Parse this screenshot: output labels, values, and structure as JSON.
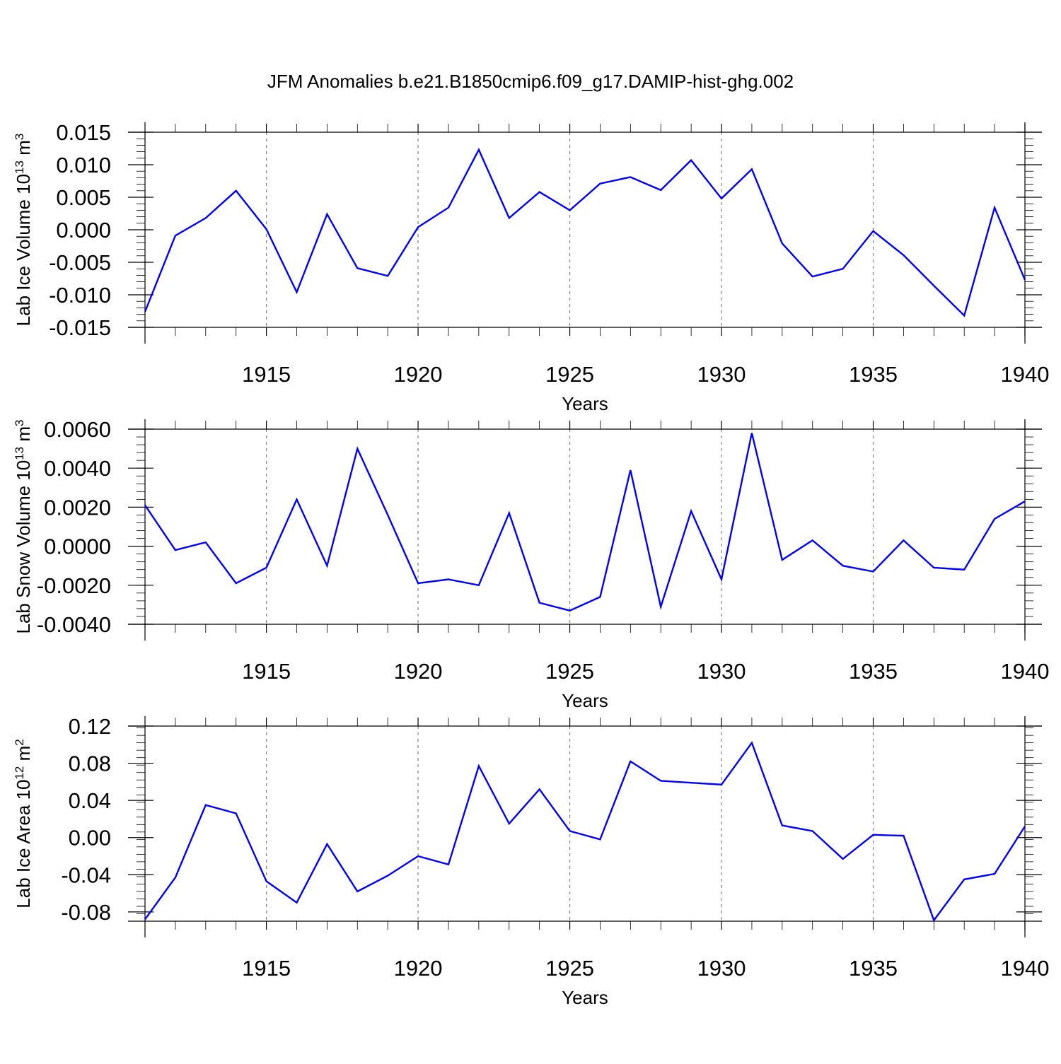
{
  "figure_title": "JFM Anomalies b.e21.B1850cmip6.f09_g17.DAMIP-hist-ghg.002",
  "colors": {
    "line": "#0000ff",
    "axis": "#000000",
    "grid": "#808080",
    "background": "#ffffff"
  },
  "chart_data": [
    {
      "type": "line",
      "title": "",
      "xlabel": "Years",
      "ylabel_main": "Lab Ice Volume 10",
      "ylabel_exp": "13",
      "ylabel_unit": " m",
      "ylabel_unit_exp": "3",
      "xlim": [
        1911,
        1940
      ],
      "ylim": [
        -0.015,
        0.015
      ],
      "x_ticks": [
        1915,
        1920,
        1925,
        1930,
        1935,
        1940
      ],
      "x_tick_labels": [
        "1915",
        "1920",
        "1925",
        "1930",
        "1935",
        "1940"
      ],
      "y_ticks": [
        -0.015,
        -0.01,
        -0.005,
        0.0,
        0.005,
        0.01,
        0.015
      ],
      "y_tick_labels": [
        "-0.015",
        "-0.010",
        "-0.005",
        "0.000",
        "0.005",
        "0.010",
        "0.015"
      ],
      "x_grid": "dashed at major ticks",
      "x": [
        1911,
        1912,
        1913,
        1914,
        1915,
        1916,
        1917,
        1918,
        1919,
        1920,
        1921,
        1922,
        1923,
        1924,
        1925,
        1926,
        1927,
        1928,
        1929,
        1930,
        1931,
        1932,
        1933,
        1934,
        1935,
        1936,
        1937,
        1938,
        1939,
        1940
      ],
      "values": [
        -0.0126,
        -0.0009,
        0.0018,
        0.006,
        0.0001,
        -0.0096,
        0.0024,
        -0.0059,
        -0.0071,
        0.0004,
        0.0034,
        0.0123,
        0.0018,
        0.0058,
        0.003,
        0.0071,
        0.0081,
        0.0061,
        0.0107,
        0.0048,
        0.0093,
        -0.0021,
        -0.0072,
        -0.006,
        -0.0002,
        -0.0039,
        -0.0086,
        -0.0132,
        0.0034,
        -0.0077
      ]
    },
    {
      "type": "line",
      "title": "",
      "xlabel": "Years",
      "ylabel_main": "Lab Snow Volume 10",
      "ylabel_exp": "13",
      "ylabel_unit": " m",
      "ylabel_unit_exp": "3",
      "xlim": [
        1911,
        1940
      ],
      "ylim": [
        -0.004,
        0.006
      ],
      "x_ticks": [
        1915,
        1920,
        1925,
        1930,
        1935,
        1940
      ],
      "x_tick_labels": [
        "1915",
        "1920",
        "1925",
        "1930",
        "1935",
        "1940"
      ],
      "y_ticks": [
        -0.004,
        -0.002,
        0.0,
        0.002,
        0.004,
        0.006
      ],
      "y_tick_labels": [
        "-0.0040",
        "-0.0020",
        "0.0000",
        "0.0020",
        "0.0040",
        "0.0060"
      ],
      "x_grid": "dashed at major ticks",
      "x": [
        1911,
        1912,
        1913,
        1914,
        1915,
        1916,
        1917,
        1918,
        1919,
        1920,
        1921,
        1922,
        1923,
        1924,
        1925,
        1926,
        1927,
        1928,
        1929,
        1930,
        1931,
        1932,
        1933,
        1934,
        1935,
        1936,
        1937,
        1938,
        1939,
        1940
      ],
      "values": [
        0.0021,
        -0.0002,
        0.0002,
        -0.0019,
        -0.0011,
        0.0024,
        -0.001,
        0.005,
        0.0016,
        -0.0019,
        -0.0017,
        -0.002,
        0.0017,
        -0.0029,
        -0.0033,
        -0.0026,
        0.0039,
        -0.0031,
        0.0018,
        -0.0017,
        0.0058,
        -0.0007,
        0.0003,
        -0.001,
        -0.0013,
        0.0003,
        -0.0011,
        -0.0012,
        0.0014,
        0.0023
      ]
    },
    {
      "type": "line",
      "title": "",
      "xlabel": "Years",
      "ylabel_main": "Lab Ice Area 10",
      "ylabel_exp": "12",
      "ylabel_unit": " m",
      "ylabel_unit_exp": "2",
      "xlim": [
        1911,
        1940
      ],
      "ylim": [
        -0.09,
        0.12
      ],
      "x_ticks": [
        1915,
        1920,
        1925,
        1930,
        1935,
        1940
      ],
      "x_tick_labels": [
        "1915",
        "1920",
        "1925",
        "1930",
        "1935",
        "1940"
      ],
      "y_ticks": [
        -0.08,
        -0.04,
        0.0,
        0.04,
        0.08,
        0.12
      ],
      "y_tick_labels": [
        "-0.08",
        "-0.04",
        "0.00",
        "0.04",
        "0.08",
        "0.12"
      ],
      "x_grid": "dashed at major ticks",
      "x": [
        1911,
        1912,
        1913,
        1914,
        1915,
        1916,
        1917,
        1918,
        1919,
        1920,
        1921,
        1922,
        1923,
        1924,
        1925,
        1926,
        1927,
        1928,
        1929,
        1930,
        1931,
        1932,
        1933,
        1934,
        1935,
        1936,
        1937,
        1938,
        1939,
        1940
      ],
      "values": [
        -0.088,
        -0.043,
        0.035,
        0.026,
        -0.047,
        -0.07,
        -0.007,
        -0.058,
        -0.041,
        -0.02,
        -0.029,
        0.077,
        0.015,
        0.052,
        0.007,
        -0.002,
        0.082,
        0.061,
        0.059,
        0.057,
        0.102,
        0.013,
        0.007,
        -0.023,
        0.003,
        0.002,
        -0.089,
        -0.045,
        -0.039,
        0.012
      ]
    }
  ]
}
